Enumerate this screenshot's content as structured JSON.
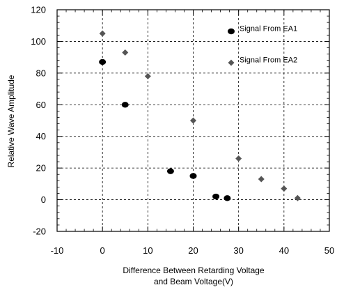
{
  "chart_data": {
    "type": "scatter",
    "xlabel_lines": [
      "Difference Between Retarding Voltage",
      "and Beam Voltage(V)"
    ],
    "ylabel": "Relative Wave Amplitude",
    "xlim": [
      -10,
      50
    ],
    "ylim": [
      -20,
      120
    ],
    "xticks": [
      -10,
      0,
      10,
      20,
      30,
      40,
      50
    ],
    "yticks": [
      -20,
      0,
      20,
      40,
      60,
      80,
      100,
      120
    ],
    "grid": true,
    "legend_position": "top-right",
    "series": [
      {
        "name": "Signal From EA1",
        "marker": "circle",
        "color": "#000000",
        "points": [
          [
            0,
            87
          ],
          [
            5,
            60
          ],
          [
            15,
            18
          ],
          [
            20,
            15
          ],
          [
            25,
            2
          ],
          [
            27.5,
            1
          ]
        ]
      },
      {
        "name": "Signal From EA2",
        "marker": "diamond",
        "color": "#555555",
        "points": [
          [
            0,
            105
          ],
          [
            5,
            93
          ],
          [
            10,
            78
          ],
          [
            20,
            50
          ],
          [
            30,
            26
          ],
          [
            35,
            13
          ],
          [
            40,
            7
          ],
          [
            43,
            1
          ]
        ]
      }
    ]
  }
}
